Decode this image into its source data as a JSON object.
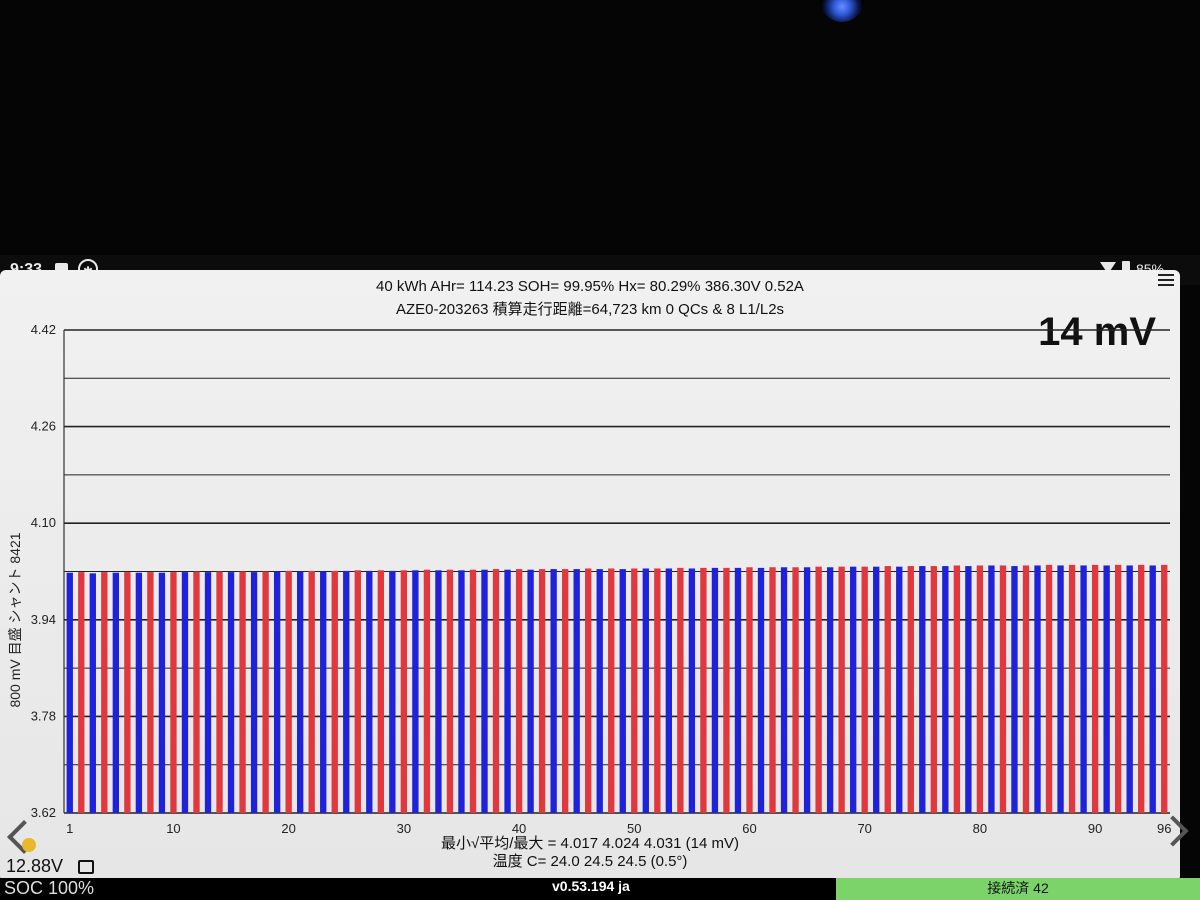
{
  "status_bar": {
    "time": "9:33",
    "battery": "85%"
  },
  "header": {
    "line1": "40 kWh  AHr= 114.23  SOH= 99.95%  Hx= 80.29%  386.30V 0.52A",
    "line2": "AZE0-203263 積算走行距離=64,723 km  0 QCs & 8 L1/L2s",
    "delta": "14 mV"
  },
  "y_axis_label": "800 mV 目盛 シャント 8421",
  "footer": {
    "stats": "最小√平均/最大 = 4.017 4.024 4.031  (14 mV)",
    "temps": "温度 C= 24.0  24.5  24.5  (0.5°)",
    "aux_voltage": "12.88V"
  },
  "bottom_bar": {
    "version": "v0.53.194 ja",
    "status": "接続済 42",
    "left_text": "SOC 100%"
  },
  "colors": {
    "bar_red": "#e0383e",
    "bar_blue": "#1f22d8"
  },
  "chart_data": {
    "type": "bar",
    "x_ticks": [
      "1",
      "10",
      "20",
      "30",
      "40",
      "50",
      "60",
      "70",
      "80",
      "90",
      "96"
    ],
    "y_ticks": [
      "4.42",
      "4.26",
      "4.10",
      "3.94",
      "3.78",
      "3.62"
    ],
    "ylim": [
      3.62,
      4.42
    ],
    "categories_count": 96,
    "min": 4.017,
    "avg": 4.024,
    "max": 4.031,
    "values": [
      4.018,
      4.019,
      4.017,
      4.019,
      4.018,
      4.019,
      4.018,
      4.019,
      4.018,
      4.019,
      4.019,
      4.02,
      4.019,
      4.02,
      4.019,
      4.02,
      4.019,
      4.02,
      4.02,
      4.021,
      4.02,
      4.021,
      4.02,
      4.021,
      4.021,
      4.022,
      4.021,
      4.022,
      4.021,
      4.022,
      4.022,
      4.023,
      4.022,
      4.023,
      4.022,
      4.023,
      4.023,
      4.024,
      4.023,
      4.024,
      4.023,
      4.024,
      4.024,
      4.024,
      4.024,
      4.025,
      4.024,
      4.025,
      4.024,
      4.025,
      4.025,
      4.025,
      4.025,
      4.026,
      4.025,
      4.026,
      4.026,
      4.026,
      4.026,
      4.027,
      4.026,
      4.027,
      4.027,
      4.027,
      4.027,
      4.028,
      4.027,
      4.028,
      4.028,
      4.028,
      4.028,
      4.029,
      4.028,
      4.029,
      4.029,
      4.029,
      4.029,
      4.03,
      4.029,
      4.03,
      4.03,
      4.03,
      4.029,
      4.03,
      4.03,
      4.031,
      4.03,
      4.031,
      4.03,
      4.031,
      4.03,
      4.031,
      4.03,
      4.031,
      4.03,
      4.031
    ]
  }
}
